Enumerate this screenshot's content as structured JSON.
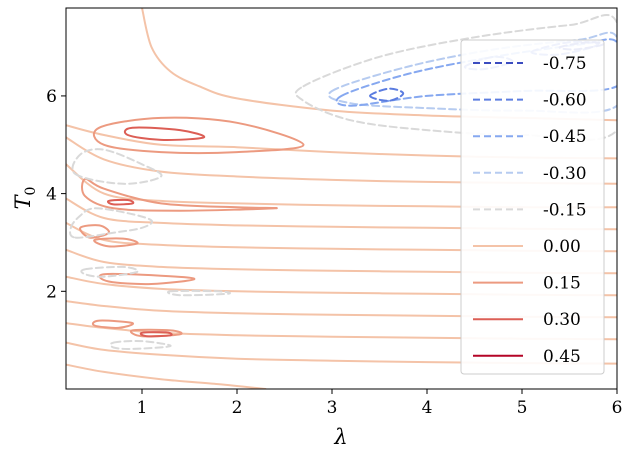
{
  "chart_data": {
    "type": "contour",
    "xlabel": "λ",
    "ylabel": "T",
    "ylabel_sub": "0",
    "xlim": [
      0.2,
      6.0
    ],
    "ylim": [
      0.0,
      7.8
    ],
    "xticks": [
      1,
      2,
      3,
      4,
      5,
      6
    ],
    "yticks": [
      2,
      4,
      6
    ],
    "legend_position": "right",
    "levels": [
      {
        "label": "-0.75",
        "value": -0.75,
        "color": "#3b4cc0",
        "style": "dashed"
      },
      {
        "label": "-0.60",
        "value": -0.6,
        "color": "#5b7ce0",
        "style": "dashed"
      },
      {
        "label": "-0.45",
        "value": -0.45,
        "color": "#86a8f0",
        "style": "dashed"
      },
      {
        "label": "-0.30",
        "value": -0.3,
        "color": "#b6cbf0",
        "style": "dashed"
      },
      {
        "label": "-0.15",
        "value": -0.15,
        "color": "#d9d9d9",
        "style": "dashed"
      },
      {
        "label": "0.00",
        "value": 0.0,
        "color": "#f4c3a8",
        "style": "solid"
      },
      {
        "label": "0.15",
        "value": 0.15,
        "color": "#ec9a80",
        "style": "solid"
      },
      {
        "label": "0.30",
        "value": 0.3,
        "color": "#dc5e55",
        "style": "solid"
      },
      {
        "label": "0.45",
        "value": 0.45,
        "color": "#b40426",
        "style": "solid"
      }
    ],
    "contours": [
      {
        "level": 0.0,
        "closed": false,
        "points": [
          [
            1.0,
            7.8
          ],
          [
            1.1,
            7.0
          ],
          [
            1.3,
            6.5
          ],
          [
            1.6,
            6.2
          ],
          [
            2.0,
            5.95
          ],
          [
            3.0,
            5.7
          ],
          [
            4.0,
            5.6
          ],
          [
            5.0,
            5.55
          ],
          [
            6.0,
            5.5
          ]
        ]
      },
      {
        "level": 0.0,
        "closed": false,
        "points": [
          [
            0.2,
            5.4
          ],
          [
            0.6,
            5.2
          ],
          [
            1.2,
            5.0
          ],
          [
            2.0,
            4.95
          ],
          [
            3.0,
            4.85
          ],
          [
            4.0,
            4.78
          ],
          [
            5.0,
            4.74
          ],
          [
            6.0,
            4.72
          ]
        ]
      },
      {
        "level": 0.0,
        "closed": false,
        "points": [
          [
            0.2,
            5.15
          ],
          [
            0.6,
            4.7
          ],
          [
            1.2,
            4.45
          ],
          [
            2.0,
            4.35
          ],
          [
            3.0,
            4.28
          ],
          [
            4.0,
            4.24
          ],
          [
            5.0,
            4.22
          ],
          [
            6.0,
            4.2
          ]
        ]
      },
      {
        "level": 0.0,
        "closed": false,
        "points": [
          [
            0.2,
            4.6
          ],
          [
            0.6,
            4.0
          ],
          [
            1.2,
            3.85
          ],
          [
            2.0,
            3.8
          ],
          [
            3.0,
            3.76
          ],
          [
            4.0,
            3.74
          ],
          [
            5.0,
            3.72
          ],
          [
            6.0,
            3.72
          ]
        ]
      },
      {
        "level": 0.0,
        "closed": false,
        "points": [
          [
            0.2,
            3.9
          ],
          [
            0.6,
            3.5
          ],
          [
            1.2,
            3.4
          ],
          [
            2.0,
            3.35
          ],
          [
            3.0,
            3.32
          ],
          [
            4.0,
            3.3
          ],
          [
            5.0,
            3.28
          ],
          [
            6.0,
            3.27
          ]
        ]
      },
      {
        "level": 0.0,
        "closed": false,
        "points": [
          [
            0.2,
            3.4
          ],
          [
            0.6,
            3.05
          ],
          [
            1.2,
            2.95
          ],
          [
            2.0,
            2.9
          ],
          [
            3.0,
            2.87
          ],
          [
            4.0,
            2.85
          ],
          [
            5.0,
            2.83
          ],
          [
            6.0,
            2.82
          ]
        ]
      },
      {
        "level": 0.0,
        "closed": false,
        "points": [
          [
            0.2,
            2.85
          ],
          [
            0.6,
            2.6
          ],
          [
            1.2,
            2.5
          ],
          [
            2.0,
            2.45
          ],
          [
            3.0,
            2.42
          ],
          [
            4.0,
            2.4
          ],
          [
            5.0,
            2.38
          ],
          [
            6.0,
            2.37
          ]
        ]
      },
      {
        "level": 0.0,
        "closed": false,
        "points": [
          [
            0.2,
            2.3
          ],
          [
            0.6,
            2.15
          ],
          [
            1.2,
            2.05
          ],
          [
            2.0,
            2.0
          ],
          [
            3.0,
            1.97
          ],
          [
            4.0,
            1.95
          ],
          [
            5.0,
            1.93
          ],
          [
            6.0,
            1.92
          ]
        ]
      },
      {
        "level": 0.0,
        "closed": false,
        "points": [
          [
            0.2,
            1.8
          ],
          [
            0.6,
            1.7
          ],
          [
            1.2,
            1.6
          ],
          [
            2.0,
            1.55
          ],
          [
            3.0,
            1.52
          ],
          [
            4.0,
            1.5
          ],
          [
            5.0,
            1.48
          ],
          [
            6.0,
            1.47
          ]
        ]
      },
      {
        "level": 0.0,
        "closed": false,
        "points": [
          [
            0.2,
            1.35
          ],
          [
            0.6,
            1.25
          ],
          [
            1.2,
            1.15
          ],
          [
            2.0,
            1.1
          ],
          [
            3.0,
            1.07
          ],
          [
            4.0,
            1.05
          ],
          [
            5.0,
            1.03
          ],
          [
            6.0,
            1.02
          ]
        ]
      },
      {
        "level": 0.0,
        "closed": false,
        "points": [
          [
            0.2,
            0.95
          ],
          [
            0.6,
            0.8
          ],
          [
            1.2,
            0.7
          ],
          [
            2.0,
            0.62
          ],
          [
            3.0,
            0.58
          ],
          [
            4.0,
            0.55
          ],
          [
            5.0,
            0.53
          ],
          [
            6.0,
            0.52
          ]
        ]
      },
      {
        "level": 0.0,
        "closed": false,
        "points": [
          [
            0.2,
            0.5
          ],
          [
            0.6,
            0.35
          ],
          [
            1.2,
            0.2
          ],
          [
            1.8,
            0.1
          ],
          [
            2.3,
            0.0
          ]
        ]
      },
      {
        "level": 0.15,
        "closed": true,
        "points": [
          [
            0.55,
            5.35
          ],
          [
            1.2,
            5.55
          ],
          [
            2.0,
            5.45
          ],
          [
            2.7,
            5.0
          ],
          [
            2.0,
            4.85
          ],
          [
            1.2,
            4.85
          ],
          [
            0.6,
            5.0
          ]
        ]
      },
      {
        "level": 0.15,
        "closed": true,
        "points": [
          [
            0.4,
            4.3
          ],
          [
            0.6,
            4.1
          ],
          [
            1.2,
            3.8
          ],
          [
            2.0,
            3.72
          ],
          [
            2.4,
            3.7
          ],
          [
            1.4,
            3.65
          ],
          [
            0.7,
            3.7
          ],
          [
            0.4,
            3.95
          ]
        ]
      },
      {
        "level": 0.15,
        "closed": true,
        "points": [
          [
            0.35,
            3.3
          ],
          [
            0.55,
            3.35
          ],
          [
            0.65,
            3.2
          ],
          [
            0.45,
            3.1
          ]
        ]
      },
      {
        "level": 0.15,
        "closed": true,
        "points": [
          [
            0.5,
            3.05
          ],
          [
            0.8,
            3.08
          ],
          [
            0.95,
            2.98
          ],
          [
            0.65,
            2.92
          ]
        ]
      },
      {
        "level": 0.15,
        "closed": true,
        "points": [
          [
            0.6,
            2.35
          ],
          [
            1.2,
            2.32
          ],
          [
            1.55,
            2.25
          ],
          [
            1.1,
            2.15
          ],
          [
            0.65,
            2.2
          ]
        ]
      },
      {
        "level": 0.15,
        "closed": true,
        "points": [
          [
            0.55,
            1.4
          ],
          [
            0.9,
            1.35
          ],
          [
            0.75,
            1.25
          ],
          [
            0.5,
            1.3
          ]
        ]
      },
      {
        "level": 0.15,
        "closed": true,
        "points": [
          [
            0.9,
            1.2
          ],
          [
            1.3,
            1.2
          ],
          [
            1.4,
            1.12
          ],
          [
            1.0,
            1.08
          ]
        ]
      },
      {
        "level": 0.3,
        "closed": true,
        "points": [
          [
            0.9,
            5.35
          ],
          [
            1.4,
            5.3
          ],
          [
            1.65,
            5.15
          ],
          [
            1.2,
            5.1
          ],
          [
            0.85,
            5.2
          ]
        ]
      },
      {
        "level": 0.3,
        "closed": true,
        "points": [
          [
            0.65,
            3.85
          ],
          [
            0.85,
            3.87
          ],
          [
            0.9,
            3.8
          ],
          [
            0.7,
            3.78
          ]
        ]
      },
      {
        "level": 0.3,
        "closed": true,
        "points": [
          [
            1.0,
            1.15
          ],
          [
            1.25,
            1.16
          ],
          [
            1.3,
            1.1
          ],
          [
            1.05,
            1.08
          ]
        ]
      },
      {
        "level": -0.15,
        "closed": true,
        "points": [
          [
            0.3,
            3.1
          ],
          [
            0.7,
            3.2
          ],
          [
            1.0,
            3.3
          ],
          [
            1.1,
            3.45
          ],
          [
            0.85,
            3.6
          ],
          [
            0.5,
            3.7
          ],
          [
            0.35,
            3.55
          ],
          [
            0.25,
            3.3
          ]
        ]
      },
      {
        "level": -0.15,
        "closed": true,
        "points": [
          [
            0.4,
            2.45
          ],
          [
            0.8,
            2.5
          ],
          [
            0.95,
            2.4
          ],
          [
            0.6,
            2.3
          ],
          [
            0.4,
            2.35
          ]
        ]
      },
      {
        "level": -0.15,
        "closed": true,
        "points": [
          [
            1.3,
            2.0
          ],
          [
            1.8,
            2.0
          ],
          [
            1.9,
            1.95
          ],
          [
            1.4,
            1.92
          ]
        ]
      },
      {
        "level": -0.15,
        "closed": true,
        "points": [
          [
            0.3,
            4.4
          ],
          [
            0.8,
            4.2
          ],
          [
            1.2,
            4.35
          ],
          [
            1.0,
            4.6
          ],
          [
            0.6,
            4.9
          ],
          [
            0.35,
            4.8
          ]
        ]
      },
      {
        "level": -0.15,
        "closed": true,
        "points": [
          [
            0.7,
            0.95
          ],
          [
            1.0,
            0.98
          ],
          [
            1.3,
            0.88
          ],
          [
            0.9,
            0.82
          ],
          [
            0.7,
            0.85
          ]
        ]
      },
      {
        "level": -0.15,
        "closed": true,
        "points": [
          [
            2.7,
            6.2
          ],
          [
            3.5,
            6.8
          ],
          [
            4.5,
            7.2
          ],
          [
            5.5,
            7.45
          ],
          [
            6.0,
            7.5
          ],
          [
            6.0,
            5.3
          ],
          [
            5.0,
            5.2
          ],
          [
            4.0,
            5.3
          ],
          [
            3.2,
            5.5
          ],
          [
            2.7,
            5.9
          ]
        ]
      },
      {
        "level": -0.3,
        "closed": true,
        "points": [
          [
            3.0,
            6.1
          ],
          [
            3.8,
            6.6
          ],
          [
            4.7,
            6.95
          ],
          [
            5.6,
            7.15
          ],
          [
            6.0,
            7.2
          ],
          [
            6.0,
            5.8
          ],
          [
            5.0,
            5.7
          ],
          [
            4.0,
            5.75
          ],
          [
            3.2,
            5.85
          ]
        ]
      },
      {
        "level": -0.45,
        "closed": true,
        "points": [
          [
            3.1,
            6.0
          ],
          [
            3.8,
            6.45
          ],
          [
            4.7,
            6.8
          ],
          [
            5.6,
            7.05
          ],
          [
            6.0,
            7.1
          ],
          [
            6.0,
            6.2
          ],
          [
            5.0,
            6.1
          ],
          [
            4.0,
            6.0
          ],
          [
            3.2,
            5.8
          ]
        ]
      },
      {
        "level": -0.6,
        "closed": true,
        "points": [
          [
            3.4,
            6.0
          ],
          [
            3.6,
            6.15
          ],
          [
            3.75,
            6.05
          ],
          [
            3.6,
            5.9
          ]
        ]
      },
      {
        "level": -0.6,
        "closed": true,
        "points": [
          [
            4.4,
            6.6
          ],
          [
            4.7,
            6.8
          ],
          [
            4.9,
            6.7
          ],
          [
            4.6,
            6.55
          ]
        ]
      },
      {
        "level": -0.6,
        "closed": true,
        "points": [
          [
            5.1,
            6.9
          ],
          [
            5.5,
            7.1
          ],
          [
            5.8,
            7.05
          ],
          [
            5.4,
            6.85
          ]
        ]
      },
      {
        "level": -0.75,
        "closed": true,
        "points": [
          [
            5.4,
            7.0
          ],
          [
            5.7,
            7.1
          ],
          [
            5.85,
            7.05
          ],
          [
            5.55,
            6.95
          ]
        ]
      }
    ]
  }
}
